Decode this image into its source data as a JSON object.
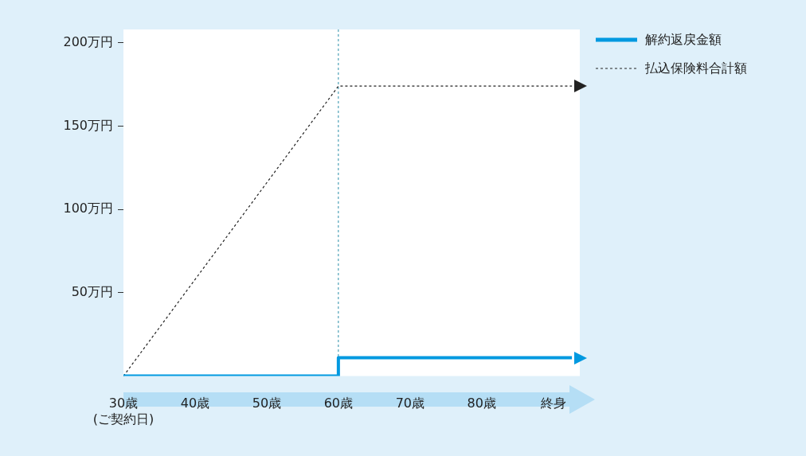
{
  "chart_data": {
    "type": "line",
    "xlim": [
      30,
      93.7
    ],
    "xticks": [
      {
        "value": 30,
        "label": "30歳\n(ご契約日)"
      },
      {
        "value": 40,
        "label": "40歳"
      },
      {
        "value": 50,
        "label": "50歳"
      },
      {
        "value": 60,
        "label": "60歳"
      },
      {
        "value": 70,
        "label": "70歳"
      },
      {
        "value": 80,
        "label": "80歳"
      },
      {
        "value": 90,
        "label": "終身"
      }
    ],
    "ylim": [
      0,
      208
    ],
    "yticks": [
      {
        "value": 50,
        "label": "50万円"
      },
      {
        "value": 100,
        "label": "100万円"
      },
      {
        "value": 150,
        "label": "150万円"
      },
      {
        "value": 200,
        "label": "200万円"
      }
    ],
    "legend": "top right",
    "series": [
      {
        "name": "解約返戻金額",
        "color": "#0099e0",
        "line_style": "solid",
        "x": [
          30,
          60,
          60,
          92.6
        ],
        "values": [
          0,
          0,
          11,
          11
        ]
      },
      {
        "name": "払込保険料合計額",
        "color": "#222222",
        "line_style": "dashed",
        "x": [
          30,
          60,
          92.6
        ],
        "values": [
          0,
          174,
          174
        ]
      }
    ],
    "ref_lines": [
      {
        "axis": "x",
        "value": 60,
        "color": "#2a8fa8",
        "line_style": "dashed"
      }
    ]
  }
}
